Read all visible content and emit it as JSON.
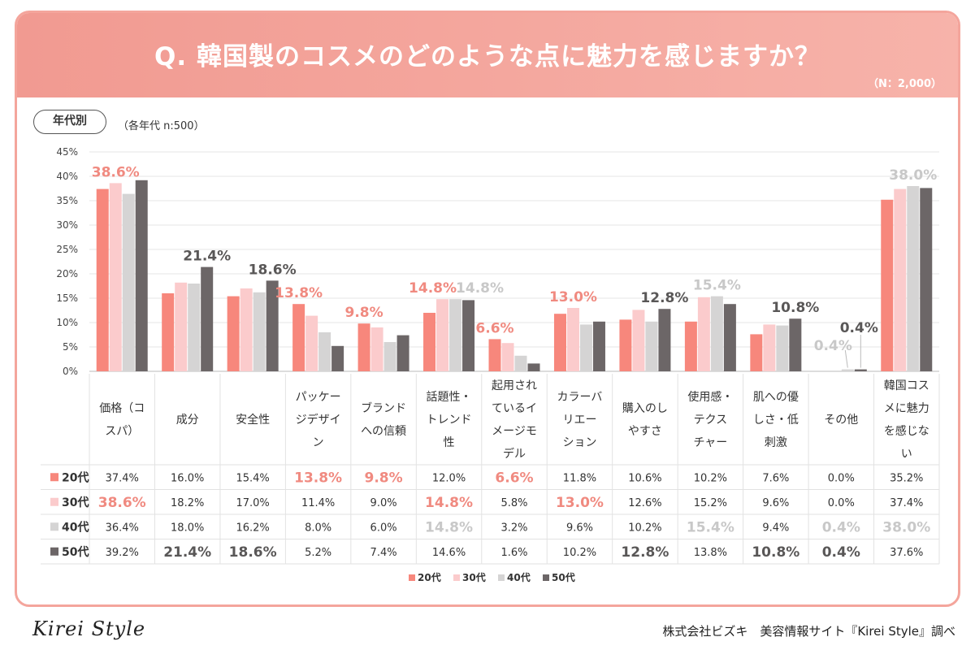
{
  "title": "Q. 韓国製のコスメのどのような点に魅力を感じますか？",
  "sample_label": "（N：2,000）",
  "segment_pill": "年代別",
  "segment_note": "（各年代 n:500）",
  "footer": {
    "logo": "Kirei Style",
    "credit": "株式会社ビズキ　美容情報サイト『Kirei Style』調べ"
  },
  "colors": {
    "s20": "#f7877c",
    "s30": "#fbcbcc",
    "s40": "#d5d4d4",
    "s50": "#6c6667",
    "accent_pink": "#f08a80",
    "accent_gray": "#c8c8c8",
    "accent_dark": "#595757"
  },
  "chart_data": {
    "type": "bar",
    "ylim": [
      0,
      45
    ],
    "yticks": [
      "0%",
      "5%",
      "10%",
      "15%",
      "20%",
      "25%",
      "30%",
      "35%",
      "40%",
      "45%"
    ],
    "categories": [
      [
        "価格（コ",
        "スパ）"
      ],
      [
        "成分"
      ],
      [
        "安全性"
      ],
      [
        "パッケー",
        "ジデザイ",
        "ン"
      ],
      [
        "ブランド",
        "への信頼"
      ],
      [
        "話題性・",
        "トレンド",
        "性"
      ],
      [
        "起用され",
        "ているイ",
        "メージモ",
        "デル"
      ],
      [
        "カラーバ",
        "リエー",
        "ション"
      ],
      [
        "購入のし",
        "やすさ"
      ],
      [
        "使用感・",
        "テクス",
        "チャー"
      ],
      [
        "肌への優",
        "しさ・低",
        "刺激"
      ],
      [
        "その他"
      ],
      [
        "韓国コス",
        "メに魅力",
        "を感じな",
        "い"
      ]
    ],
    "series": [
      {
        "name": "20代",
        "values": [
          37.4,
          16.0,
          15.4,
          13.8,
          9.8,
          12.0,
          6.6,
          11.8,
          10.6,
          10.2,
          7.6,
          0.0,
          35.2
        ],
        "labels": [
          "37.4%",
          "16.0%",
          "15.4%",
          "13.8%",
          "9.8%",
          "12.0%",
          "6.6%",
          "11.8%",
          "10.6%",
          "10.2%",
          "7.6%",
          "0.0%",
          "35.2%"
        ]
      },
      {
        "name": "30代",
        "values": [
          38.6,
          18.2,
          17.0,
          11.4,
          9.0,
          14.8,
          5.8,
          13.0,
          12.6,
          15.2,
          9.6,
          0.0,
          37.4
        ],
        "labels": [
          "38.6%",
          "18.2%",
          "17.0%",
          "11.4%",
          "9.0%",
          "14.8%",
          "5.8%",
          "13.0%",
          "12.6%",
          "15.2%",
          "9.6%",
          "0.0%",
          "37.4%"
        ]
      },
      {
        "name": "40代",
        "values": [
          36.4,
          18.0,
          16.2,
          8.0,
          6.0,
          14.8,
          3.2,
          9.6,
          10.2,
          15.4,
          9.4,
          0.4,
          38.0
        ],
        "labels": [
          "36.4%",
          "18.0%",
          "16.2%",
          "8.0%",
          "6.0%",
          "14.8%",
          "3.2%",
          "9.6%",
          "10.2%",
          "15.4%",
          "9.4%",
          "0.4%",
          "38.0%"
        ]
      },
      {
        "name": "50代",
        "values": [
          39.2,
          21.4,
          18.6,
          5.2,
          7.4,
          14.6,
          1.6,
          10.2,
          12.8,
          13.8,
          10.8,
          0.4,
          37.6
        ],
        "labels": [
          "39.2%",
          "21.4%",
          "18.6%",
          "5.2%",
          "7.4%",
          "14.6%",
          "1.6%",
          "10.2%",
          "12.8%",
          "13.8%",
          "10.8%",
          "0.4%",
          "37.6%"
        ]
      }
    ],
    "top_annotations": [
      {
        "text": "38.6%",
        "category": 0,
        "series": 1,
        "color": "pink"
      },
      {
        "text": "21.4%",
        "category": 1,
        "series": 3,
        "color": "dark"
      },
      {
        "text": "18.6%",
        "category": 2,
        "series": 3,
        "color": "dark"
      },
      {
        "text": "13.8%",
        "category": 3,
        "series": 0,
        "color": "pink"
      },
      {
        "text": "9.8%",
        "category": 4,
        "series": 0,
        "color": "pink"
      },
      {
        "text": "14.8%",
        "category": 5,
        "series": 1,
        "color": "pink"
      },
      {
        "text": "14.8%",
        "category": 5,
        "series": 2,
        "color": "gray"
      },
      {
        "text": "6.6%",
        "category": 6,
        "series": 0,
        "color": "pink"
      },
      {
        "text": "13.0%",
        "category": 7,
        "series": 1,
        "color": "pink"
      },
      {
        "text": "12.8%",
        "category": 8,
        "series": 3,
        "color": "dark"
      },
      {
        "text": "15.4%",
        "category": 9,
        "series": 2,
        "color": "gray"
      },
      {
        "text": "10.8%",
        "category": 10,
        "series": 3,
        "color": "dark"
      },
      {
        "text": "0.4%",
        "category": 11,
        "series": 2,
        "color": "gray"
      },
      {
        "text": "0.4%",
        "category": 11,
        "series": 3,
        "color": "dark"
      },
      {
        "text": "38.0%",
        "category": 12,
        "series": 2,
        "color": "gray"
      }
    ],
    "table_highlights": [
      [
        1,
        0,
        "pink"
      ],
      [
        0,
        3,
        "pink"
      ],
      [
        0,
        4,
        "pink"
      ],
      [
        1,
        5,
        "pink"
      ],
      [
        0,
        6,
        "pink"
      ],
      [
        1,
        7,
        "pink"
      ],
      [
        2,
        5,
        "gray"
      ],
      [
        2,
        9,
        "gray"
      ],
      [
        2,
        11,
        "gray"
      ],
      [
        2,
        12,
        "gray"
      ],
      [
        3,
        1,
        "dark"
      ],
      [
        3,
        2,
        "dark"
      ],
      [
        3,
        8,
        "dark"
      ],
      [
        3,
        10,
        "dark"
      ],
      [
        3,
        11,
        "dark"
      ]
    ],
    "legend": [
      "20代",
      "30代",
      "40代",
      "50代"
    ]
  }
}
